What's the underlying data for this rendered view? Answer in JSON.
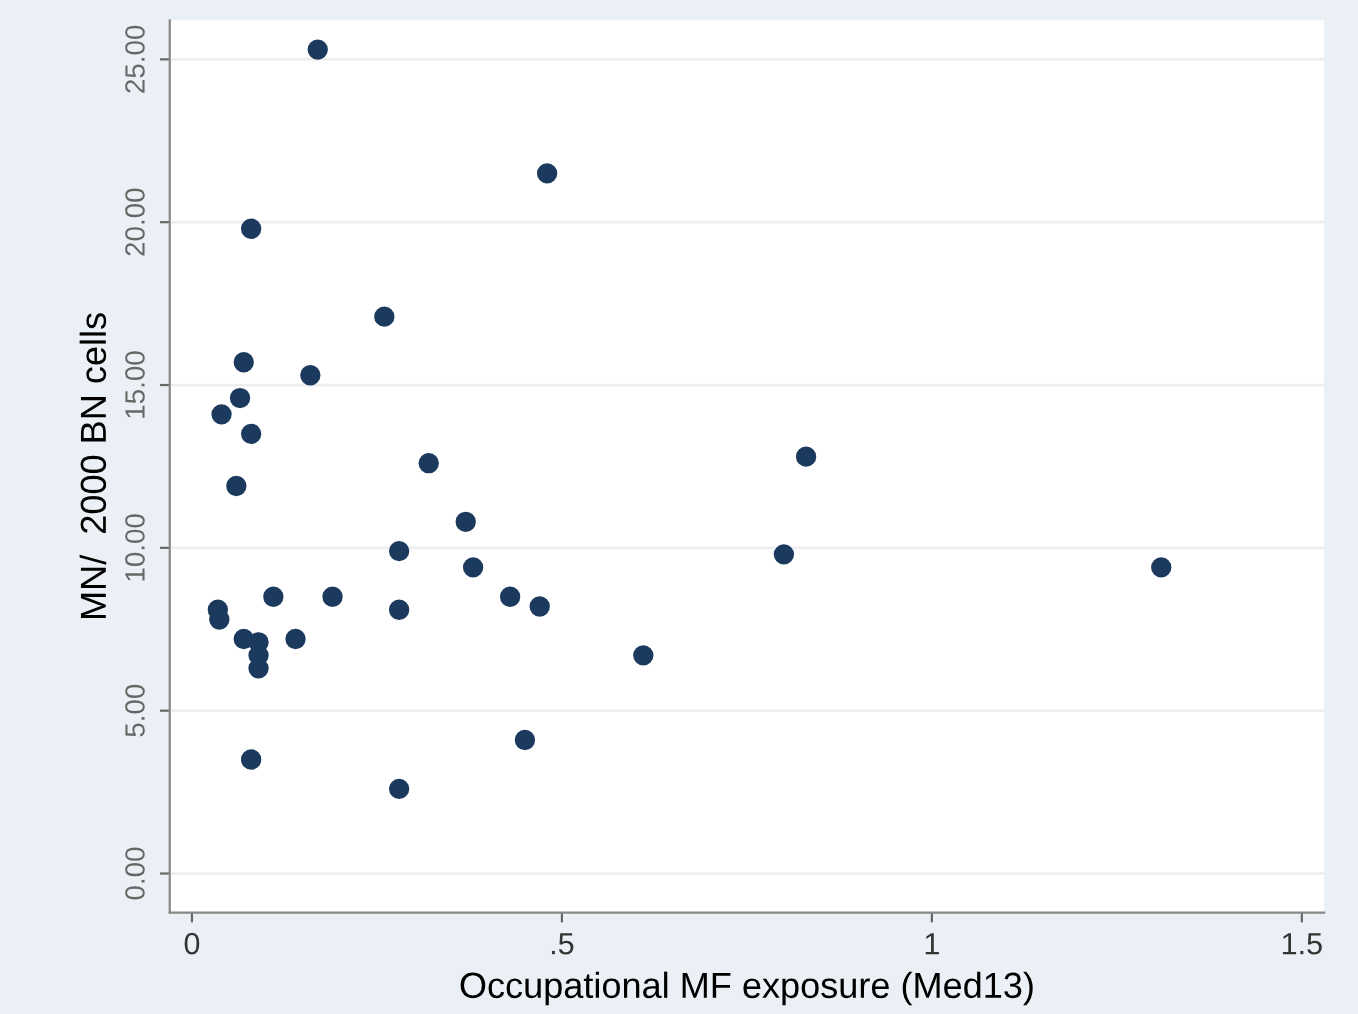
{
  "chart_data": {
    "type": "scatter",
    "xlabel": "Occupational MF exposure (Med13)",
    "ylabel": "MN/  2000 BN cells",
    "x": [
      0.17,
      0.48,
      0.08,
      0.26,
      0.07,
      0.16,
      0.065,
      0.04,
      0.08,
      0.32,
      0.06,
      0.83,
      0.8,
      1.31,
      0.61,
      0.37,
      0.28,
      0.38,
      0.035,
      0.037,
      0.11,
      0.19,
      0.28,
      0.43,
      0.47,
      0.07,
      0.09,
      0.14,
      0.09,
      0.09,
      0.45,
      0.08,
      0.28
    ],
    "series": [
      {
        "color": "#1b3a5e",
        "values": [
          25.3,
          21.5,
          19.8,
          17.1,
          15.7,
          15.3,
          14.6,
          14.1,
          13.5,
          12.6,
          11.9,
          12.8,
          9.8,
          9.4,
          6.7,
          10.8,
          9.9,
          9.4,
          8.1,
          7.8,
          8.5,
          8.5,
          8.1,
          8.5,
          8.2,
          7.2,
          7.1,
          7.2,
          6.7,
          6.3,
          4.1,
          3.5,
          2.6
        ]
      }
    ],
    "xlim": [
      -0.03,
      1.53
    ],
    "ylim": [
      -1.2,
      26.2
    ],
    "xticks": [
      0,
      {
        "value": 0.5,
        "label": ".5"
      },
      1,
      1.5
    ],
    "yticks": [
      {
        "value": 0,
        "label": "0.00"
      },
      {
        "value": 5,
        "label": "5.00"
      },
      {
        "value": 10,
        "label": "10.00"
      },
      {
        "value": 15,
        "label": "15.00"
      },
      {
        "value": 20,
        "label": "20.00"
      },
      {
        "value": 25,
        "label": "25.00"
      }
    ],
    "grid": "y",
    "marker": "circle"
  }
}
